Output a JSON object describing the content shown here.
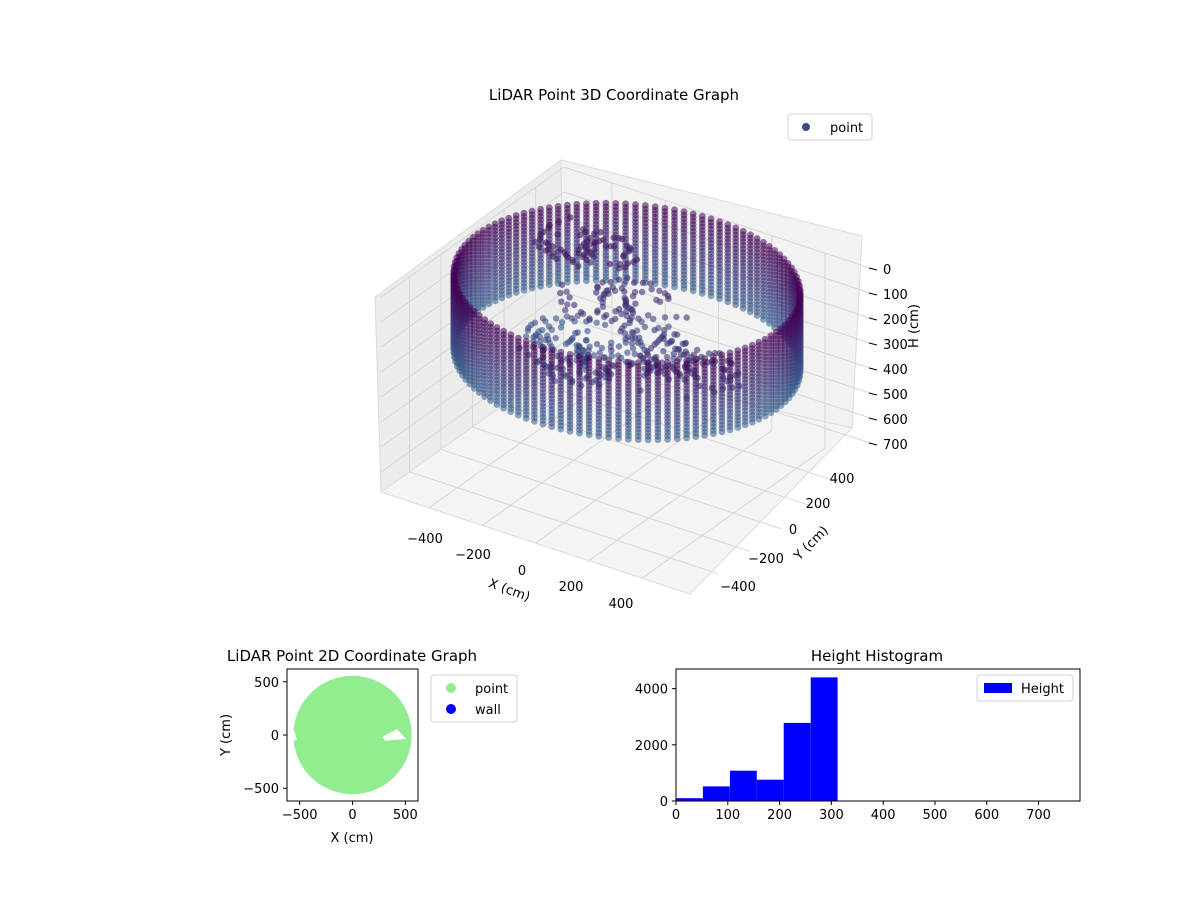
{
  "chart_data": [
    {
      "type": "scatter",
      "title": "LiDAR Point 3D Coordinate Graph",
      "xlabel": "X (cm)",
      "ylabel": "Y (cm)",
      "zlabel": "H (cm)",
      "x_ticks": [
        "−400",
        "−200",
        "0",
        "200",
        "400"
      ],
      "y_ticks": [
        "400",
        "200",
        "0",
        "−200",
        "−400"
      ],
      "z_ticks": [
        "0",
        "100",
        "200",
        "300",
        "400",
        "500",
        "600",
        "700"
      ],
      "xlim": [
        -580,
        580
      ],
      "ylim": [
        -580,
        580
      ],
      "zlim": [
        0,
        780
      ],
      "z_inverted": true,
      "grid": true,
      "legend": {
        "position": "top-right",
        "entries": [
          {
            "label": "point",
            "color": "#3b4c8c"
          }
        ]
      },
      "colormap": "viridis",
      "wall_radius": 560,
      "wall_height": [
        0,
        310
      ],
      "interior_clusters": [
        {
          "x": -300,
          "y": 250,
          "h": 80
        },
        {
          "x": -100,
          "y": 100,
          "h": 150
        },
        {
          "x": 100,
          "y": 0,
          "h": 200
        },
        {
          "x": 300,
          "y": -100,
          "h": 180
        },
        {
          "x": 0,
          "y": -200,
          "h": 240
        },
        {
          "x": -200,
          "y": -100,
          "h": 260
        }
      ]
    },
    {
      "type": "scatter",
      "title": "LiDAR Point 2D Coordinate Graph",
      "xlabel": "X (cm)",
      "ylabel": "Y (cm)",
      "x_ticks": [
        "−500",
        "0",
        "500"
      ],
      "y_ticks": [
        "500",
        "0",
        "−500"
      ],
      "xlim": [
        -620,
        620
      ],
      "ylim": [
        -620,
        620
      ],
      "legend": {
        "position": "outside-right",
        "entries": [
          {
            "label": "point",
            "color": "#90ee90"
          },
          {
            "label": "wall",
            "color": "#0000ff"
          }
        ]
      },
      "point_region_radius": 560
    },
    {
      "type": "bar",
      "title": "Height Histogram",
      "xlim": [
        0,
        780
      ],
      "ylim": [
        0,
        4700
      ],
      "x_ticks": [
        "0",
        "100",
        "200",
        "300",
        "400",
        "500",
        "600",
        "700"
      ],
      "y_ticks": [
        "0",
        "2000",
        "4000"
      ],
      "bar_color": "#0000ff",
      "legend": {
        "position": "top-right",
        "entries": [
          {
            "label": "Height",
            "color": "#0000ff"
          }
        ]
      },
      "bins": [
        {
          "from": 0,
          "to": 52,
          "count": 100
        },
        {
          "from": 52,
          "to": 104,
          "count": 520
        },
        {
          "from": 104,
          "to": 156,
          "count": 1080
        },
        {
          "from": 156,
          "to": 208,
          "count": 760
        },
        {
          "from": 208,
          "to": 260,
          "count": 2780
        },
        {
          "from": 260,
          "to": 312,
          "count": 4400
        }
      ]
    }
  ]
}
